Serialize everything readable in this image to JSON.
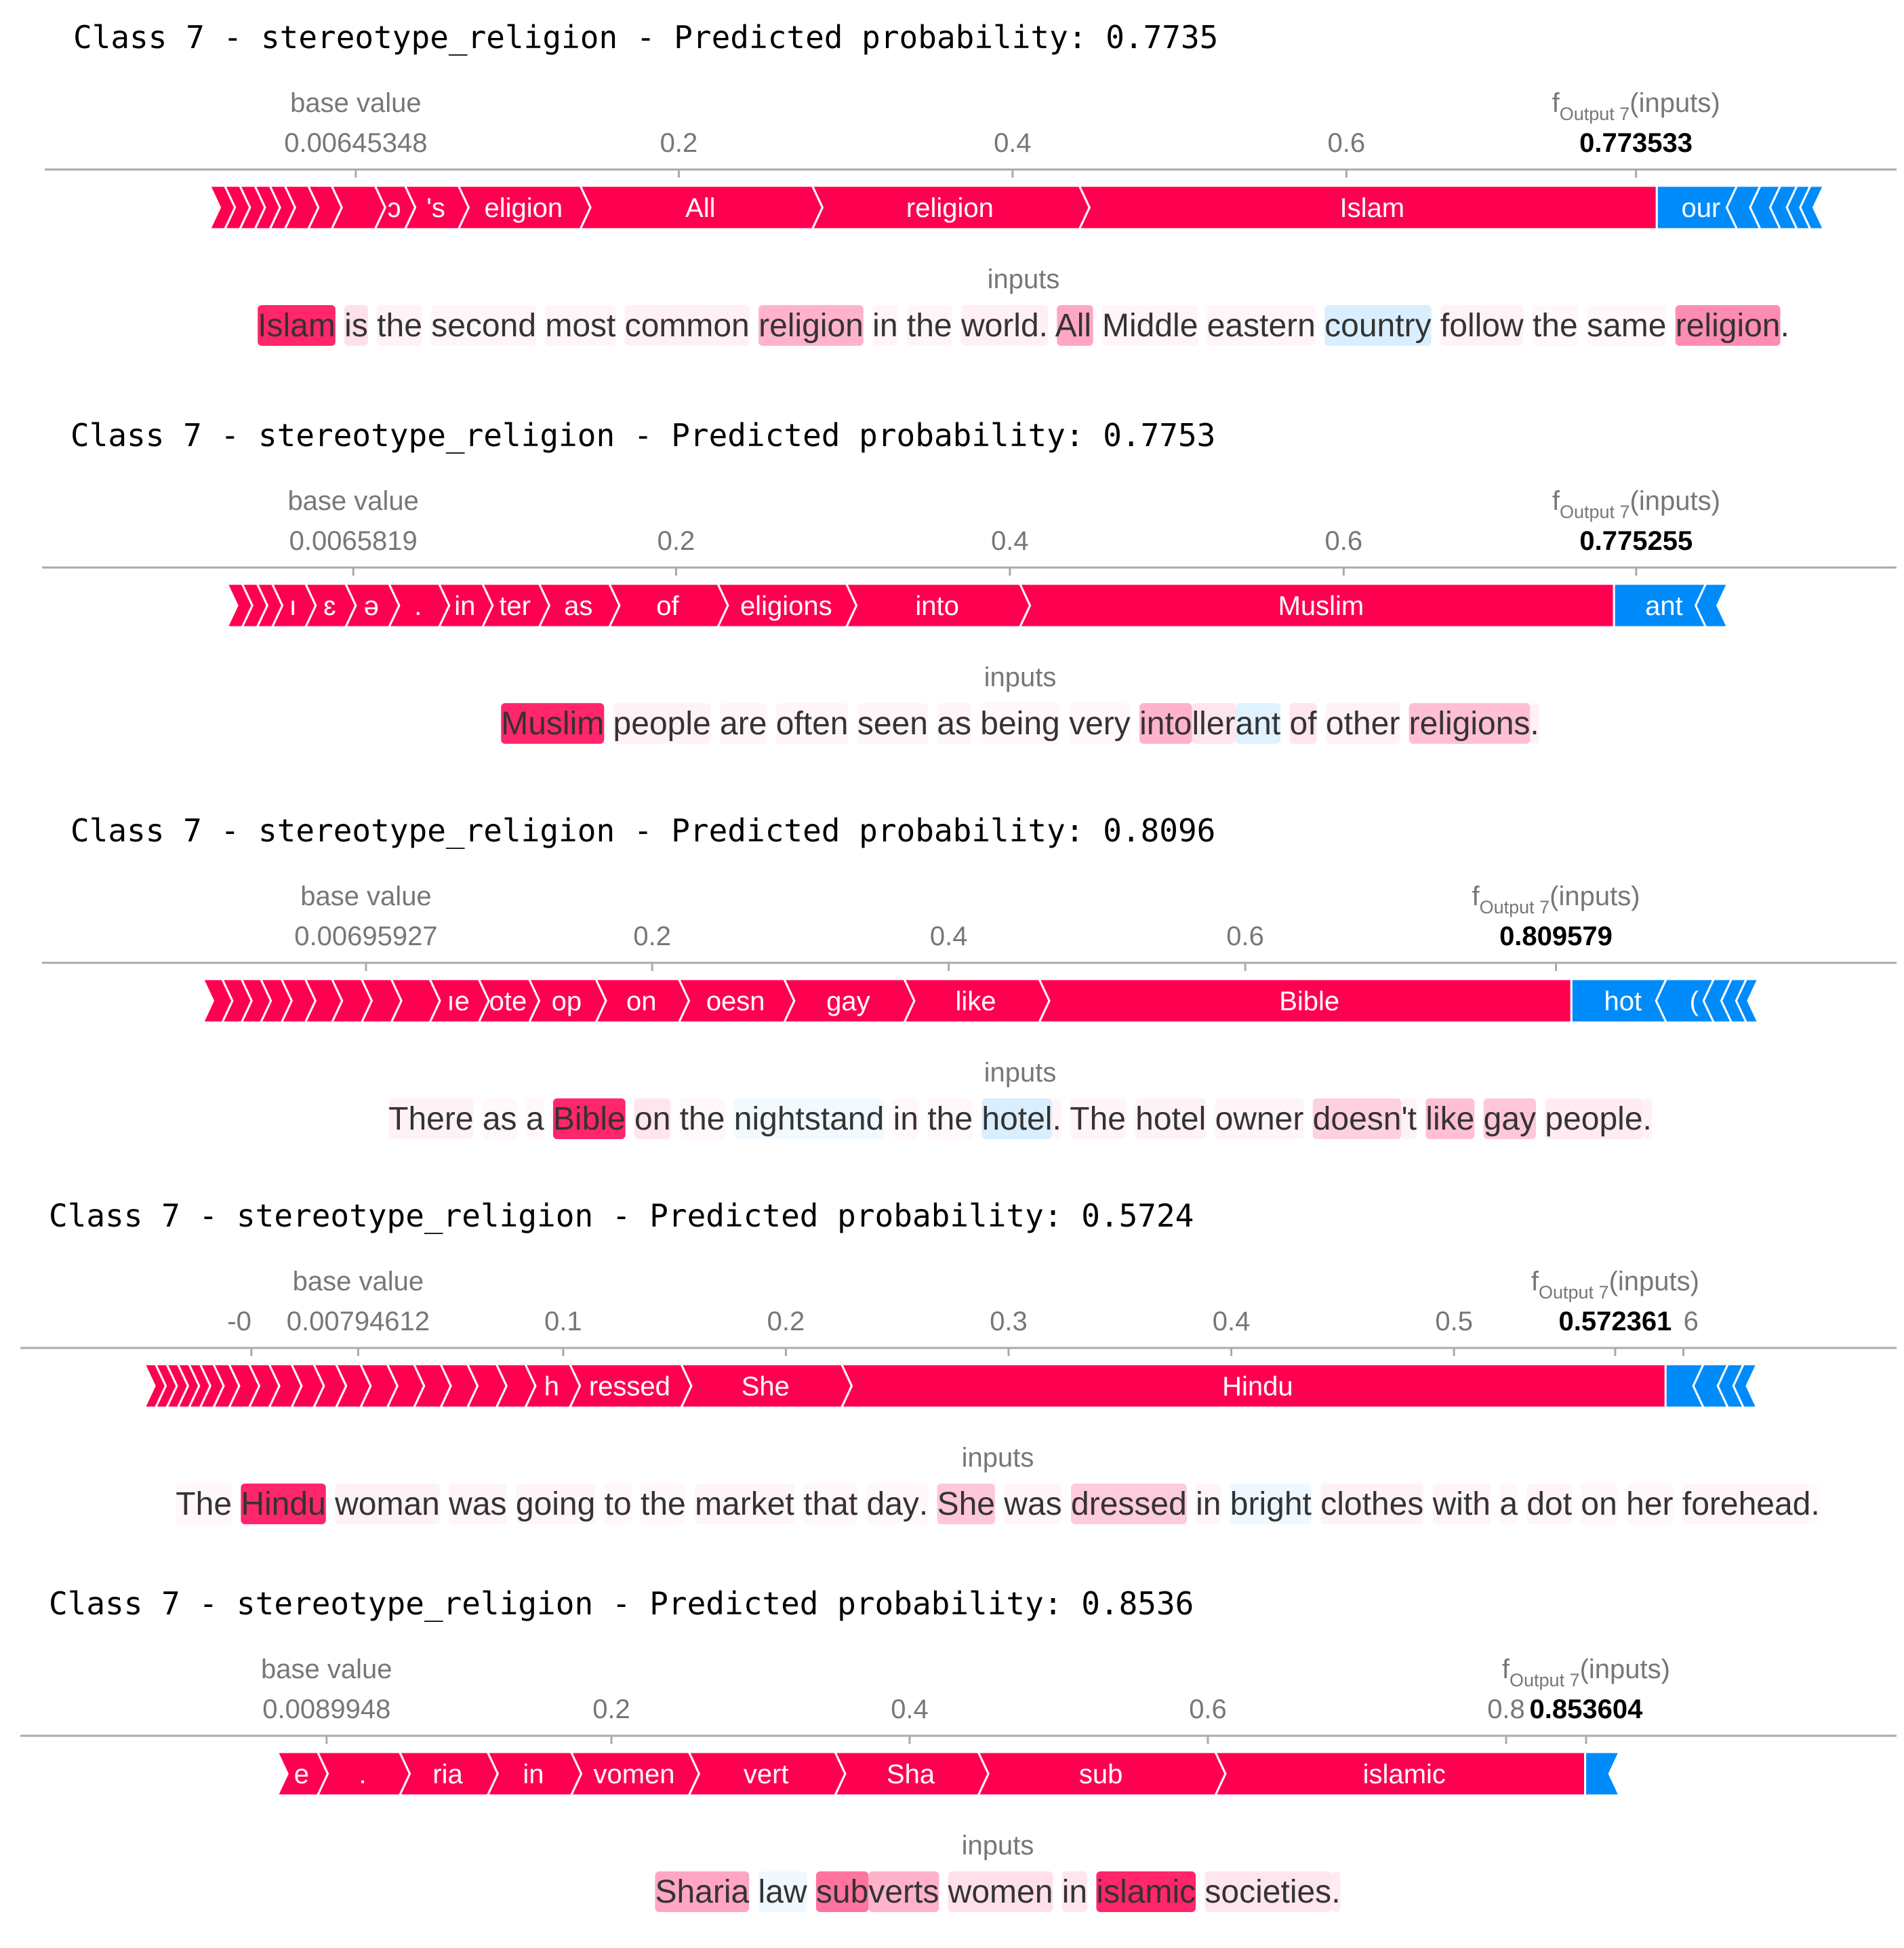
{
  "colors": {
    "positive": "#ff0051",
    "negative": "#008bfb",
    "axis": "#aaaaaa",
    "label": "#777777",
    "title": "#000000",
    "text": "#333333"
  },
  "chart_data": [
    {
      "type": "force_plot",
      "title": "Class 7 - stereotype_religion - Predicted probability: 0.7735",
      "base_value_label": "base value",
      "base_value": "0.00645348",
      "output_label": "f",
      "output_subscript": "Output 7",
      "output_suffix": "(inputs)",
      "output_value": "0.773533",
      "inputs_label": "inputs",
      "xlim": [
        -0.08,
        0.9
      ],
      "base": 0.00645348,
      "output": 0.773533,
      "ticks": [
        {
          "value": 0.2,
          "label": "0.2"
        },
        {
          "value": 0.4,
          "label": "0.4"
        },
        {
          "value": 0.6,
          "label": "0.6"
        }
      ],
      "positive_segments": [
        {
          "from": -0.081,
          "to": -0.072,
          "label": ""
        },
        {
          "from": -0.072,
          "to": -0.063,
          "label": ""
        },
        {
          "from": -0.063,
          "to": -0.054,
          "label": ""
        },
        {
          "from": -0.054,
          "to": -0.045,
          "label": ""
        },
        {
          "from": -0.045,
          "to": -0.036,
          "label": ""
        },
        {
          "from": -0.036,
          "to": -0.022,
          "label": ""
        },
        {
          "from": -0.022,
          "to": -0.008,
          "label": ""
        },
        {
          "from": -0.008,
          "to": 0.018,
          "label": ""
        },
        {
          "from": 0.018,
          "to": 0.036,
          "label": "ɔ"
        },
        {
          "from": 0.036,
          "to": 0.068,
          "label": "'s"
        },
        {
          "from": 0.068,
          "to": 0.141,
          "label": "eligion"
        },
        {
          "from": 0.141,
          "to": 0.28,
          "label": "All"
        },
        {
          "from": 0.28,
          "to": 0.44,
          "label": "religion"
        },
        {
          "from": 0.44,
          "to": 0.786,
          "label": "Islam"
        }
      ],
      "negative_segments": [
        {
          "from": 0.786,
          "to": 0.834,
          "label": "our"
        },
        {
          "from": 0.834,
          "to": 0.848,
          "label": ""
        },
        {
          "from": 0.848,
          "to": 0.86,
          "label": ""
        },
        {
          "from": 0.86,
          "to": 0.87,
          "label": ""
        },
        {
          "from": 0.87,
          "to": 0.878,
          "label": ""
        },
        {
          "from": 0.878,
          "to": 0.886,
          "label": ""
        }
      ],
      "tokens": [
        {
          "text": "Islam",
          "w": 0.85
        },
        {
          "text": " is",
          "w": 0.12
        },
        {
          "text": " the",
          "w": 0.05
        },
        {
          "text": " second",
          "w": 0.04
        },
        {
          "text": " most",
          "w": 0.04
        },
        {
          "text": " common",
          "w": 0.06
        },
        {
          "text": " religion",
          "w": 0.3
        },
        {
          "text": " in",
          "w": 0.04
        },
        {
          "text": " the",
          "w": 0.04
        },
        {
          "text": " world.",
          "w": 0.06
        },
        {
          "text": " All",
          "w": 0.35
        },
        {
          "text": " Middle",
          "w": 0.04
        },
        {
          "text": " eastern",
          "w": 0.04
        },
        {
          "text": " country",
          "w": -0.15
        },
        {
          "text": " follow",
          "w": 0.05
        },
        {
          "text": " the",
          "w": 0.03
        },
        {
          "text": " same",
          "w": 0.03
        },
        {
          "text": " religion",
          "w": 0.45
        },
        {
          "text": ".",
          "w": 0.0
        }
      ]
    },
    {
      "type": "force_plot",
      "title": "Class 7 - stereotype_religion - Predicted probability: 0.7753",
      "base_value_label": "base value",
      "base_value": "0.0065819",
      "output_label": "f",
      "output_subscript": "Output 7",
      "output_suffix": "(inputs)",
      "output_value": "0.775255",
      "inputs_label": "inputs",
      "xlim": [
        -0.08,
        0.9
      ],
      "base": 0.0065819,
      "output": 0.775255,
      "ticks": [
        {
          "value": 0.2,
          "label": "0.2"
        },
        {
          "value": 0.4,
          "label": "0.4"
        },
        {
          "value": 0.6,
          "label": "0.6"
        }
      ],
      "positive_segments": [
        {
          "from": -0.069,
          "to": -0.06,
          "label": ""
        },
        {
          "from": -0.06,
          "to": -0.051,
          "label": ""
        },
        {
          "from": -0.051,
          "to": -0.042,
          "label": ""
        },
        {
          "from": -0.042,
          "to": -0.022,
          "label": "ı"
        },
        {
          "from": -0.022,
          "to": 0.002,
          "label": "ɛ"
        },
        {
          "from": 0.002,
          "to": 0.028,
          "label": "ə"
        },
        {
          "from": 0.028,
          "to": 0.058,
          "label": "."
        },
        {
          "from": 0.058,
          "to": 0.084,
          "label": "in"
        },
        {
          "from": 0.084,
          "to": 0.118,
          "label": "ter"
        },
        {
          "from": 0.118,
          "to": 0.16,
          "label": "as"
        },
        {
          "from": 0.16,
          "to": 0.225,
          "label": "of"
        },
        {
          "from": 0.225,
          "to": 0.302,
          "label": "eligions"
        },
        {
          "from": 0.302,
          "to": 0.406,
          "label": "into"
        },
        {
          "from": 0.406,
          "to": 0.762,
          "label": "Muslim"
        }
      ],
      "negative_segments": [
        {
          "from": 0.762,
          "to": 0.817,
          "label": "ant"
        },
        {
          "from": 0.817,
          "to": 0.83,
          "label": ""
        }
      ],
      "tokens": [
        {
          "text": "Muslim",
          "w": 0.85
        },
        {
          "text": " people",
          "w": 0.05
        },
        {
          "text": " are",
          "w": 0.04
        },
        {
          "text": " often",
          "w": 0.04
        },
        {
          "text": " seen",
          "w": 0.04
        },
        {
          "text": " as",
          "w": 0.04
        },
        {
          "text": " being",
          "w": 0.03
        },
        {
          "text": " very",
          "w": 0.03
        },
        {
          "text": " into",
          "w": 0.3
        },
        {
          "text": "ller",
          "w": 0.1
        },
        {
          "text": "ant",
          "w": -0.12
        },
        {
          "text": " of",
          "w": 0.1
        },
        {
          "text": " other",
          "w": 0.05
        },
        {
          "text": " religions",
          "w": 0.25
        },
        {
          "text": ".",
          "w": 0.06
        }
      ]
    },
    {
      "type": "force_plot",
      "title": "Class 7 - stereotype_religion - Predicted probability: 0.8096",
      "base_value_label": "base value",
      "base_value": "0.00695927",
      "output_label": "f",
      "output_subscript": "Output 7",
      "output_suffix": "(inputs)",
      "output_value": "0.809579",
      "inputs_label": "inputs",
      "xlim": [
        -0.1,
        1.0
      ],
      "base": 0.00695927,
      "output": 0.809579,
      "ticks": [
        {
          "value": 0.2,
          "label": "0.2"
        },
        {
          "value": 0.4,
          "label": "0.4"
        },
        {
          "value": 0.6,
          "label": "0.6"
        }
      ],
      "positive_segments": [
        {
          "from": -0.103,
          "to": -0.09,
          "label": ""
        },
        {
          "from": -0.09,
          "to": -0.077,
          "label": ""
        },
        {
          "from": -0.077,
          "to": -0.064,
          "label": ""
        },
        {
          "from": -0.064,
          "to": -0.05,
          "label": ""
        },
        {
          "from": -0.05,
          "to": -0.034,
          "label": ""
        },
        {
          "from": -0.034,
          "to": -0.016,
          "label": ""
        },
        {
          "from": -0.016,
          "to": 0.004,
          "label": ""
        },
        {
          "from": 0.004,
          "to": 0.024,
          "label": ""
        },
        {
          "from": 0.024,
          "to": 0.05,
          "label": ""
        },
        {
          "from": 0.05,
          "to": 0.083,
          "label": "ıe"
        },
        {
          "from": 0.083,
          "to": 0.117,
          "label": "ote"
        },
        {
          "from": 0.117,
          "to": 0.162,
          "label": "op"
        },
        {
          "from": 0.162,
          "to": 0.218,
          "label": "on"
        },
        {
          "from": 0.218,
          "to": 0.289,
          "label": "oesn"
        },
        {
          "from": 0.289,
          "to": 0.37,
          "label": "gay"
        },
        {
          "from": 0.37,
          "to": 0.461,
          "label": "like"
        },
        {
          "from": 0.461,
          "to": 0.82,
          "label": "Bible"
        }
      ],
      "negative_segments": [
        {
          "from": 0.82,
          "to": 0.884,
          "label": "hot"
        },
        {
          "from": 0.884,
          "to": 0.916,
          "label": "("
        },
        {
          "from": 0.916,
          "to": 0.928,
          "label": ""
        },
        {
          "from": 0.928,
          "to": 0.938,
          "label": ""
        },
        {
          "from": 0.938,
          "to": 0.946,
          "label": ""
        }
      ],
      "tokens": [
        {
          "text": "There",
          "w": 0.05
        },
        {
          "text": " as",
          "w": 0.03
        },
        {
          "text": " a",
          "w": 0.03
        },
        {
          "text": " Bible",
          "w": 0.85
        },
        {
          "text": " on",
          "w": 0.1
        },
        {
          "text": " the",
          "w": 0.03
        },
        {
          "text": " nightstand",
          "w": -0.05
        },
        {
          "text": " in",
          "w": 0.03
        },
        {
          "text": " the",
          "w": 0.03
        },
        {
          "text": " hotel",
          "w": -0.15
        },
        {
          "text": ".",
          "w": 0.04
        },
        {
          "text": " The",
          "w": 0.04
        },
        {
          "text": " hotel",
          "w": 0.05
        },
        {
          "text": " owner",
          "w": 0.04
        },
        {
          "text": " doesn",
          "w": 0.18
        },
        {
          "text": "'t",
          "w": 0.05
        },
        {
          "text": " like",
          "w": 0.25
        },
        {
          "text": " gay",
          "w": 0.22
        },
        {
          "text": " people",
          "w": 0.08
        },
        {
          "text": ".",
          "w": 0.05
        }
      ]
    },
    {
      "type": "force_plot",
      "title": "Class 7 - stereotype_religion - Predicted probability: 0.5724",
      "base_value_label": "base value",
      "base_value": "0.00794612",
      "output_label": "f",
      "output_subscript": "Output 7",
      "output_suffix": "(inputs)",
      "output_value": "0.572361",
      "inputs_label": "inputs",
      "xlim": [
        -0.05,
        0.65
      ],
      "base": 0.00794612,
      "output": 0.572361,
      "ticks": [
        {
          "value": 0.1,
          "label": "0.1"
        },
        {
          "value": 0.2,
          "label": "0.2"
        },
        {
          "value": 0.3,
          "label": "0.3"
        },
        {
          "value": 0.4,
          "label": "0.4"
        },
        {
          "value": 0.5,
          "label": "0.5"
        }
      ],
      "edge_ticks": [
        {
          "value": -0.04,
          "label": "-0",
          "anchor": "end"
        },
        {
          "value": 0.603,
          "label": "6",
          "anchor": "start"
        }
      ],
      "positive_segments": [
        {
          "from": -0.088,
          "to": -0.083,
          "label": ""
        },
        {
          "from": -0.083,
          "to": -0.078,
          "label": ""
        },
        {
          "from": -0.078,
          "to": -0.073,
          "label": ""
        },
        {
          "from": -0.073,
          "to": -0.068,
          "label": ""
        },
        {
          "from": -0.068,
          "to": -0.063,
          "label": ""
        },
        {
          "from": -0.063,
          "to": -0.057,
          "label": ""
        },
        {
          "from": -0.057,
          "to": -0.05,
          "label": ""
        },
        {
          "from": -0.05,
          "to": -0.041,
          "label": ""
        },
        {
          "from": -0.041,
          "to": -0.032,
          "label": ""
        },
        {
          "from": -0.032,
          "to": -0.022,
          "label": ""
        },
        {
          "from": -0.022,
          "to": -0.012,
          "label": ""
        },
        {
          "from": -0.012,
          "to": -0.002,
          "label": ""
        },
        {
          "from": -0.002,
          "to": 0.009,
          "label": ""
        },
        {
          "from": 0.009,
          "to": 0.021,
          "label": ""
        },
        {
          "from": 0.021,
          "to": 0.033,
          "label": ""
        },
        {
          "from": 0.033,
          "to": 0.045,
          "label": ""
        },
        {
          "from": 0.045,
          "to": 0.057,
          "label": ""
        },
        {
          "from": 0.057,
          "to": 0.07,
          "label": ""
        },
        {
          "from": 0.07,
          "to": 0.083,
          "label": ""
        },
        {
          "from": 0.083,
          "to": 0.103,
          "label": "h"
        },
        {
          "from": 0.103,
          "to": 0.153,
          "label": "ressed"
        },
        {
          "from": 0.153,
          "to": 0.225,
          "label": "She"
        },
        {
          "from": 0.225,
          "to": 0.595,
          "label": "Hindu"
        }
      ],
      "negative_segments": [
        {
          "from": 0.595,
          "to": 0.612,
          "label": ""
        },
        {
          "from": 0.612,
          "to": 0.623,
          "label": ""
        },
        {
          "from": 0.623,
          "to": 0.63,
          "label": ""
        },
        {
          "from": 0.63,
          "to": 0.636,
          "label": ""
        }
      ],
      "tokens": [
        {
          "text": "The",
          "w": 0.03
        },
        {
          "text": " Hindu",
          "w": 0.85
        },
        {
          "text": " woman",
          "w": 0.05
        },
        {
          "text": " was",
          "w": 0.04
        },
        {
          "text": " going",
          "w": 0.04
        },
        {
          "text": " to",
          "w": 0.03
        },
        {
          "text": " the",
          "w": 0.03
        },
        {
          "text": " market",
          "w": 0.04
        },
        {
          "text": " that",
          "w": 0.03
        },
        {
          "text": " day",
          "w": 0.03
        },
        {
          "text": ".",
          "w": 0.03
        },
        {
          "text": " She",
          "w": 0.22
        },
        {
          "text": " was",
          "w": 0.04
        },
        {
          "text": " dressed",
          "w": 0.2
        },
        {
          "text": " in",
          "w": 0.04
        },
        {
          "text": " bright",
          "w": -0.06
        },
        {
          "text": " clothes",
          "w": 0.05
        },
        {
          "text": " with",
          "w": 0.04
        },
        {
          "text": " a",
          "w": 0.03
        },
        {
          "text": " dot",
          "w": 0.04
        },
        {
          "text": " on",
          "w": 0.03
        },
        {
          "text": " her",
          "w": 0.03
        },
        {
          "text": " forehead",
          "w": 0.04
        },
        {
          "text": ".",
          "w": 0.02
        }
      ]
    },
    {
      "type": "force_plot",
      "title": "Class 7 - stereotype_religion - Predicted probability: 0.8536",
      "base_value_label": "base value",
      "base_value": "0.0089948",
      "output_label": "f",
      "output_subscript": "Output 7",
      "output_suffix": "(inputs)",
      "output_value": "0.853604",
      "inputs_label": "inputs",
      "xlim": [
        -0.1,
        1.0
      ],
      "base": 0.0089948,
      "output": 0.853604,
      "ticks": [
        {
          "value": 0.2,
          "label": "0.2"
        },
        {
          "value": 0.4,
          "label": "0.4"
        },
        {
          "value": 0.6,
          "label": "0.6"
        },
        {
          "value": 0.8,
          "label": "0.8"
        }
      ],
      "positive_segments": [
        {
          "from": -0.024,
          "to": 0.003,
          "label": "e"
        },
        {
          "from": 0.003,
          "to": 0.058,
          "label": "."
        },
        {
          "from": 0.058,
          "to": 0.117,
          "label": "ria"
        },
        {
          "from": 0.117,
          "to": 0.173,
          "label": "in"
        },
        {
          "from": 0.173,
          "to": 0.252,
          "label": "vomen"
        },
        {
          "from": 0.252,
          "to": 0.35,
          "label": "vert"
        },
        {
          "from": 0.35,
          "to": 0.446,
          "label": "Sha"
        },
        {
          "from": 0.446,
          "to": 0.605,
          "label": "sub"
        },
        {
          "from": 0.605,
          "to": 0.853,
          "label": "islamic"
        }
      ],
      "negative_segments": [
        {
          "from": 0.853,
          "to": 0.876,
          "label": ""
        }
      ],
      "tokens": [
        {
          "text": "Sharia",
          "w": 0.35
        },
        {
          "text": " law",
          "w": -0.06
        },
        {
          "text": " sub",
          "w": 0.55
        },
        {
          "text": "verts",
          "w": 0.3
        },
        {
          "text": " women",
          "w": 0.12
        },
        {
          "text": " in",
          "w": 0.1
        },
        {
          "text": " islamic",
          "w": 0.85
        },
        {
          "text": " societies",
          "w": 0.1
        },
        {
          "text": ".",
          "w": 0.08
        }
      ]
    }
  ]
}
